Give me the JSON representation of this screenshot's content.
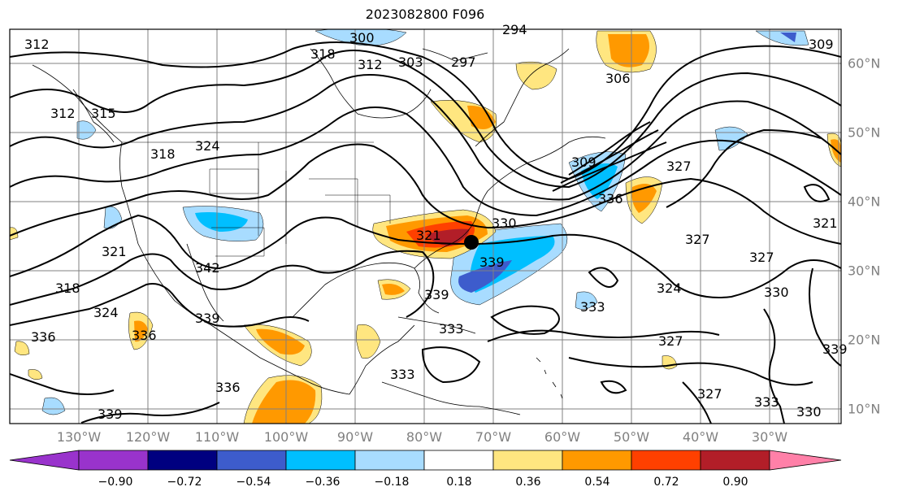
{
  "title": "2023082800 F096",
  "map": {
    "lon_labels": [
      "130°W",
      "120°W",
      "110°W",
      "100°W",
      "90°W",
      "80°W",
      "70°W",
      "60°W",
      "50°W",
      "40°W",
      "30°W"
    ],
    "lat_labels": [
      "60°N",
      "50°N",
      "40°N",
      "30°N",
      "20°N",
      "10°N"
    ],
    "contour_labels": [
      "312",
      "318",
      "312",
      "303",
      "297",
      "294",
      "306",
      "309",
      "315",
      "312",
      "318",
      "324",
      "327",
      "321",
      "336",
      "327",
      "321",
      "321",
      "330",
      "342",
      "327",
      "339",
      "318",
      "324",
      "324",
      "339",
      "333",
      "336",
      "336",
      "327",
      "330",
      "339",
      "336",
      "333",
      "339",
      "333",
      "339",
      "327",
      "333",
      "330",
      "309",
      "300"
    ],
    "marker": "storm-center"
  },
  "colorbar": {
    "ticks": [
      "−0.90",
      "−0.72",
      "−0.54",
      "−0.36",
      "−0.18",
      "0.18",
      "0.36",
      "0.54",
      "0.72",
      "0.90"
    ],
    "colors": [
      "#9933cc",
      "#000080",
      "#3d5ccc",
      "#00bfff",
      "#a8dcff",
      "#ffffff",
      "#ffe680",
      "#ff9900",
      "#ff4000",
      "#b21e28",
      "#ff80a8"
    ]
  }
}
